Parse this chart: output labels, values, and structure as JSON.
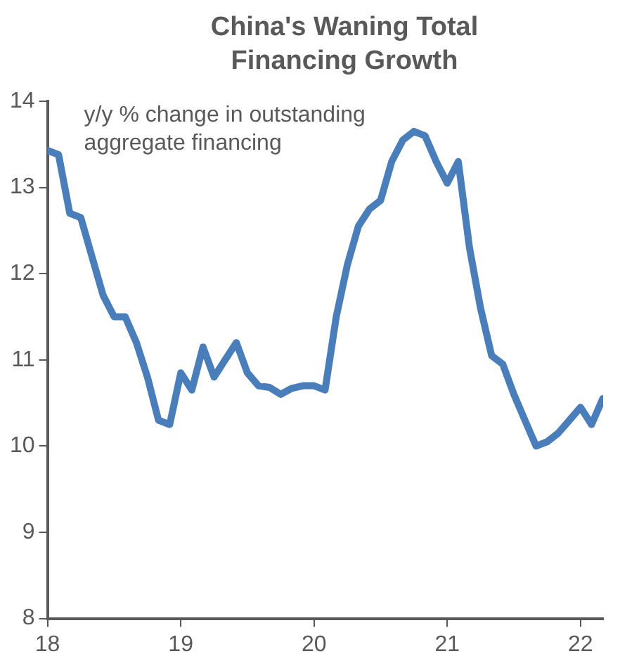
{
  "chart_data": {
    "type": "line",
    "title": "China's Waning Total Financing Growth",
    "annotations": [
      "y/y % change in outstanding aggregate financing"
    ],
    "x": [
      18.0,
      18.083,
      18.167,
      18.25,
      18.333,
      18.417,
      18.5,
      18.583,
      18.667,
      18.75,
      18.833,
      18.917,
      19.0,
      19.083,
      19.167,
      19.25,
      19.333,
      19.417,
      19.5,
      19.583,
      19.667,
      19.75,
      19.833,
      19.917,
      20.0,
      20.083,
      20.167,
      20.25,
      20.333,
      20.417,
      20.5,
      20.583,
      20.667,
      20.75,
      20.833,
      20.917,
      21.0,
      21.083,
      21.167,
      21.25,
      21.333,
      21.417,
      21.5,
      21.583,
      21.667,
      21.75,
      21.833,
      21.917,
      22.0,
      22.083,
      22.167
    ],
    "series": [
      {
        "color": "#4a7ebb",
        "values": [
          13.43,
          13.38,
          12.7,
          12.65,
          12.2,
          11.75,
          11.5,
          11.5,
          11.2,
          10.8,
          10.3,
          10.25,
          10.85,
          10.65,
          11.15,
          10.8,
          11.0,
          11.2,
          10.85,
          10.7,
          10.68,
          10.6,
          10.67,
          10.7,
          10.7,
          10.65,
          11.5,
          12.1,
          12.55,
          12.75,
          12.85,
          13.3,
          13.55,
          13.65,
          13.6,
          13.3,
          13.05,
          13.3,
          12.3,
          11.6,
          11.05,
          10.95,
          10.6,
          10.3,
          10.0,
          10.05,
          10.15,
          10.3,
          10.45,
          10.25,
          10.55
        ]
      }
    ],
    "xlim": [
      18,
      22.17
    ],
    "xticks": [
      18,
      19,
      20,
      21,
      22
    ],
    "ylim": [
      8,
      14
    ],
    "yticks": [
      8,
      9,
      10,
      11,
      12,
      13,
      14
    ],
    "grid": false,
    "legend": false,
    "marker": "none",
    "line_style": "solid"
  }
}
